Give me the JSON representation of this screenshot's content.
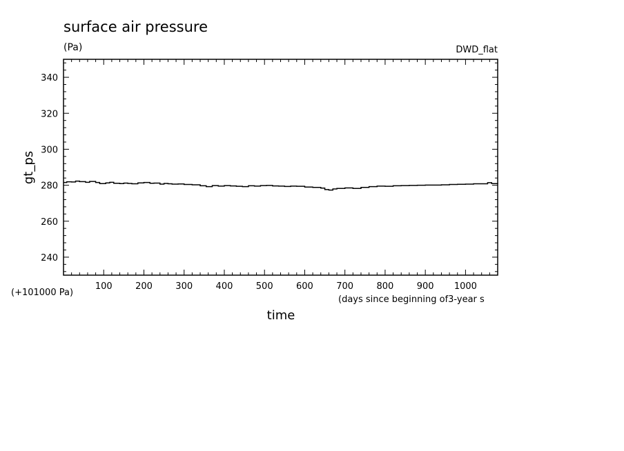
{
  "chart_data": {
    "type": "line",
    "title": "surface air pressure",
    "unit_label": "(Pa)",
    "dataset_label": "DWD_flat",
    "ylabel": "gt_ps",
    "xlabel": "time",
    "x_units_label": "(days since beginning of3-year s",
    "y_offset_label": "(+101000 Pa)",
    "xlim": [
      0,
      1080
    ],
    "ylim": [
      230,
      350
    ],
    "x_ticks": [
      100,
      200,
      300,
      400,
      500,
      600,
      700,
      800,
      900,
      1000
    ],
    "x_tick_labels": [
      "100",
      "200",
      "300",
      "400",
      "500",
      "600",
      "700",
      "800",
      "900",
      "1000"
    ],
    "y_ticks": [
      240,
      260,
      280,
      300,
      320,
      340
    ],
    "y_tick_labels": [
      "240",
      "260",
      "280",
      "300",
      "320",
      "340"
    ],
    "grid": false,
    "series": [
      {
        "x": [
          0,
          8,
          20,
          30,
          40,
          55,
          65,
          80,
          90,
          105,
          115,
          125,
          140,
          150,
          160,
          170,
          185,
          200,
          215,
          225,
          240,
          250,
          260,
          270,
          285,
          300,
          320,
          340,
          355,
          370,
          385,
          400,
          415,
          430,
          445,
          460,
          475,
          490,
          505,
          520,
          535,
          550,
          565,
          580,
          600,
          620,
          640,
          650,
          660,
          670,
          680,
          700,
          720,
          740,
          760,
          780,
          800,
          820,
          840,
          860,
          880,
          900,
          920,
          940,
          960,
          980,
          1000,
          1020,
          1040,
          1055,
          1065,
          1080
        ],
        "y": [
          281.5,
          281.9,
          281.8,
          282.3,
          282.0,
          281.6,
          282.1,
          281.5,
          280.9,
          281.3,
          281.6,
          281.1,
          280.9,
          281.2,
          281.0,
          280.8,
          281.3,
          281.5,
          281.1,
          281.2,
          280.6,
          281.0,
          280.8,
          280.6,
          280.7,
          280.4,
          280.2,
          279.7,
          279.2,
          279.8,
          279.5,
          279.8,
          279.6,
          279.4,
          279.2,
          279.7,
          279.5,
          279.8,
          279.9,
          279.6,
          279.5,
          279.3,
          279.5,
          279.4,
          279.0,
          278.8,
          278.4,
          277.6,
          277.3,
          277.9,
          278.2,
          278.5,
          278.2,
          278.8,
          279.2,
          279.5,
          279.4,
          279.7,
          279.8,
          279.9,
          280.0,
          280.1,
          280.1,
          280.2,
          280.4,
          280.5,
          280.6,
          280.8,
          280.8,
          281.4,
          280.9,
          280.7
        ]
      }
    ]
  }
}
